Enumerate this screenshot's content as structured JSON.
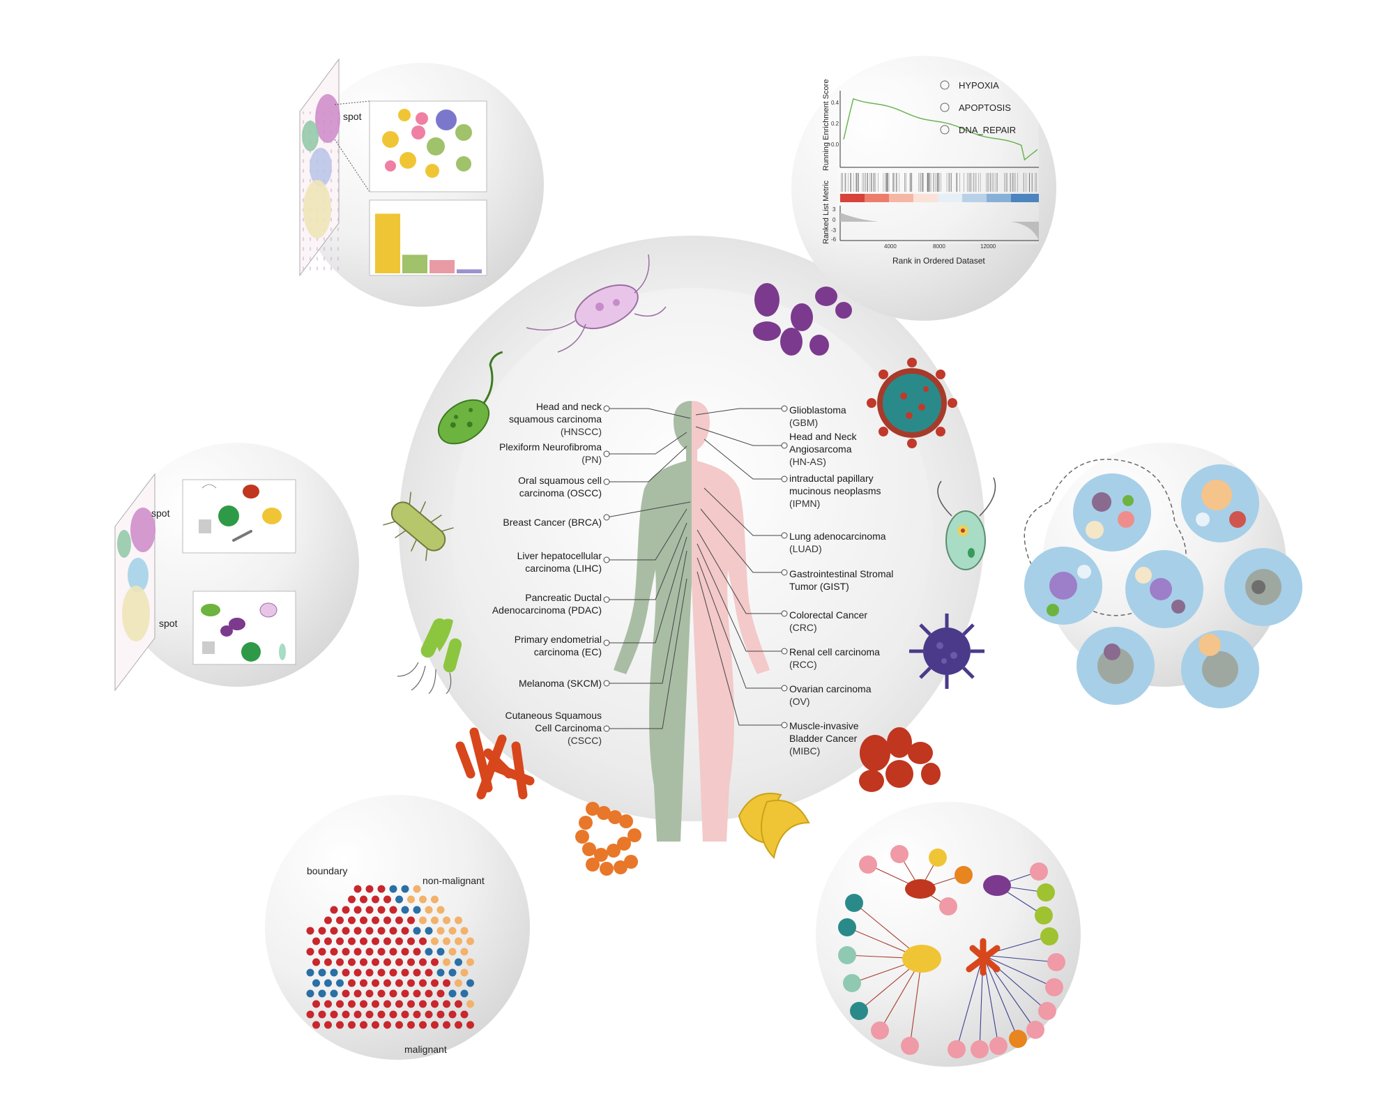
{
  "colors": {
    "ring": "#ececec",
    "inner": "#f3f3f3",
    "body_left": "#a9bda5",
    "body_right": "#f3c9c9",
    "malignant": "#c8272d",
    "boundary": "#2a6fa5",
    "non_malignant": "#f2b26b",
    "gsea_line": "#69b552"
  },
  "center": {
    "left_labels": [
      {
        "lines": [
          "Head and neck",
          "squamous carcinoma",
          "(HNSCC)"
        ]
      },
      {
        "lines": [
          "Plexiform Neurofibroma",
          "(PN)"
        ]
      },
      {
        "lines": [
          "Oral squamous cell",
          "carcinoma (OSCC)"
        ]
      },
      {
        "lines": [
          "Breast Cancer (BRCA)"
        ]
      },
      {
        "lines": [
          "Liver hepatocellular",
          "carcinoma (LIHC)"
        ]
      },
      {
        "lines": [
          "Pancreatic Ductal",
          "Adenocarcinoma (PDAC)"
        ]
      },
      {
        "lines": [
          "Primary endometrial",
          "carcinoma (EC)"
        ]
      },
      {
        "lines": [
          "Melanoma (SKCM)"
        ]
      },
      {
        "lines": [
          "Cutaneous Squamous",
          "Cell Carcinoma",
          "(CSCC)"
        ]
      }
    ],
    "right_labels": [
      {
        "lines": [
          "Glioblastoma",
          "(GBM)"
        ]
      },
      {
        "lines": [
          "Head and Neck",
          "Angiosarcoma",
          "(HN-AS)"
        ]
      },
      {
        "lines": [
          "intraductal papillary",
          "mucinous neoplasms",
          "(IPMN)"
        ]
      },
      {
        "lines": [
          "Lung adenocarcinoma",
          "(LUAD)"
        ]
      },
      {
        "lines": [
          "Gastrointestinal Stromal",
          "Tumor (GIST)"
        ]
      },
      {
        "lines": [
          "Colorectal Cancer",
          "(CRC)"
        ]
      },
      {
        "lines": [
          "Renal cell carcinoma",
          "(RCC)"
        ]
      },
      {
        "lines": [
          "Ovarian carcinoma",
          "(OV)"
        ]
      },
      {
        "lines": [
          "Muscle-invasive",
          "Bladder Cancer",
          "(MIBC)"
        ]
      }
    ]
  },
  "spot_panel": {
    "spot_label": "spot",
    "bars": [
      0.9,
      0.28,
      0.2,
      0.06
    ],
    "bar_colors": [
      "#f0c535",
      "#9fc26a",
      "#e89aa5",
      "#9b93cc"
    ]
  },
  "microbe_panel": {
    "spot_label_1": "spot",
    "spot_label_2": "spot"
  },
  "gsea_panel": {
    "legend": [
      "HYPOXIA",
      "APOPTOSIS",
      "DNA_REPAIR"
    ],
    "ylabel_top": "Running Enrichment Score",
    "ylabel_bottom": "Ranked List Metric",
    "xlabel": "Rank in Ordered Dataset",
    "yticks_top": [
      "0.4",
      "0.2",
      "0.0"
    ],
    "yticks_bottom": [
      "3",
      "0",
      "-3",
      "-6"
    ],
    "xticks": [
      "4000",
      "8000",
      "12000"
    ]
  },
  "spatial_panel": {
    "label_boundary": "boundary",
    "label_non_malignant": "non-malignant",
    "label_malignant": "malignant"
  }
}
